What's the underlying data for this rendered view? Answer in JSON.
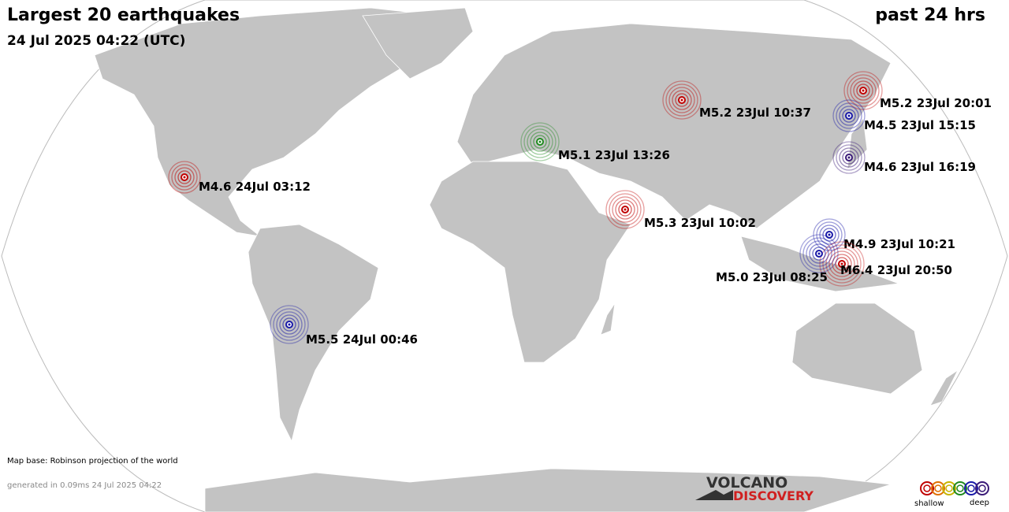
{
  "header": {
    "title": "Largest 20 earthquakes",
    "subtitle": "24 Jul 2025 04:22 (UTC)",
    "period": "past 24 hrs"
  },
  "quakes": [
    {
      "label": "M5.2 23Jul 20:01",
      "color": "#c00000"
    },
    {
      "label": "M5.2 23Jul 10:37",
      "color": "#c00000"
    },
    {
      "label": "M4.5 23Jul 15:15",
      "color": "#1a1aa8"
    },
    {
      "label": "M5.1 23Jul 13:26",
      "color": "#1f8a1f"
    },
    {
      "label": "M4.6 23Jul 16:19",
      "color": "#3a1a78"
    },
    {
      "label": "M4.6 24Jul 03:12",
      "color": "#c00000"
    },
    {
      "label": "M5.3 23Jul 10:02",
      "color": "#c00000"
    },
    {
      "label": "M4.9 23Jul 10:21",
      "color": "#1a1aa8"
    },
    {
      "label": "M6.4 23Jul 20:50",
      "color": "#c00000"
    },
    {
      "label": "M5.0 23Jul 08:25",
      "color": "#1a1aa8"
    },
    {
      "label": "M5.5 24Jul 00:46",
      "color": "#1a1aa8"
    }
  ],
  "footer": {
    "map_base": "Map base: Robinson projection of the world",
    "generated": "generated in 0.09ms 24 Jul 2025 04:22"
  },
  "logo": {
    "line1": "VOLCANO",
    "line2": "DISCOVERY"
  },
  "legend": {
    "shallow": "shallow",
    "deep": "deep",
    "colors": [
      "#c00000",
      "#e07000",
      "#c8b400",
      "#1f8a1f",
      "#1a1aa8",
      "#3a1a78"
    ]
  }
}
